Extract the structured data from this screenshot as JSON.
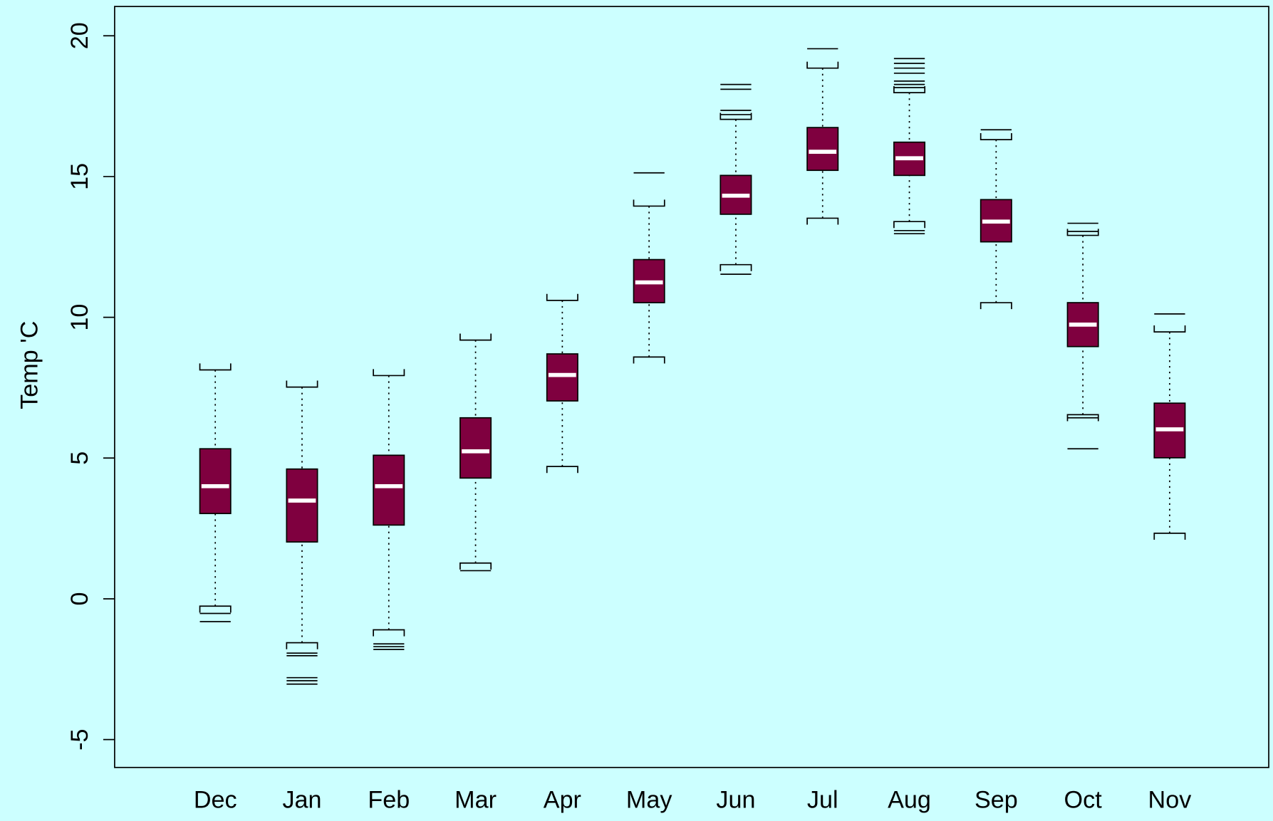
{
  "chart_data": {
    "type": "boxplot",
    "y_label": "Temp 'C",
    "categories": [
      "Dec",
      "Jan",
      "Feb",
      "Mar",
      "Apr",
      "May",
      "Jun",
      "Jul",
      "Aug",
      "Sep",
      "Oct",
      "Nov"
    ],
    "boxes": [
      {
        "whisker_low": -0.26,
        "q1": 3.03,
        "median": 4.0,
        "q3": 5.33,
        "whisker_high": 8.13,
        "outliers": [
          -0.52,
          -0.81
        ]
      },
      {
        "whisker_low": -1.56,
        "q1": 2.02,
        "median": 3.49,
        "q3": 4.61,
        "whisker_high": 7.52,
        "outliers": [
          -1.93,
          -2.02,
          -2.8,
          -2.91,
          -3.03
        ]
      },
      {
        "whisker_low": -1.1,
        "q1": 2.62,
        "median": 4.0,
        "q3": 5.1,
        "whisker_high": 7.93,
        "outliers": [
          -1.6,
          -1.7,
          -1.8
        ]
      },
      {
        "whisker_low": 1.27,
        "q1": 4.29,
        "median": 5.24,
        "q3": 6.43,
        "whisker_high": 9.19,
        "outliers": [
          1.0
        ]
      },
      {
        "whisker_low": 4.7,
        "q1": 7.03,
        "median": 7.95,
        "q3": 8.7,
        "whisker_high": 10.6,
        "outliers": []
      },
      {
        "whisker_low": 8.59,
        "q1": 10.52,
        "median": 11.24,
        "q3": 12.05,
        "whisker_high": 13.95,
        "outliers": [
          15.13
        ]
      },
      {
        "whisker_low": 11.87,
        "q1": 13.66,
        "median": 14.32,
        "q3": 15.04,
        "whisker_high": 17.03,
        "outliers": [
          18.27,
          18.1,
          17.35,
          17.2,
          11.53
        ]
      },
      {
        "whisker_low": 13.52,
        "q1": 15.22,
        "median": 15.88,
        "q3": 16.74,
        "whisker_high": 18.85,
        "outliers": [
          19.54
        ]
      },
      {
        "whisker_low": 13.4,
        "q1": 15.04,
        "median": 15.65,
        "q3": 16.22,
        "whisker_high": 17.98,
        "outliers": [
          19.19,
          19.02,
          18.85,
          18.67,
          18.39,
          18.27,
          18.16,
          13.08,
          12.97
        ]
      },
      {
        "whisker_low": 10.52,
        "q1": 12.68,
        "median": 13.4,
        "q3": 14.18,
        "whisker_high": 16.31,
        "outliers": [
          16.66
        ]
      },
      {
        "whisker_low": 6.54,
        "q1": 8.96,
        "median": 9.74,
        "q3": 10.52,
        "whisker_high": 12.91,
        "outliers": [
          13.34,
          13.05,
          6.43,
          5.33
        ]
      },
      {
        "whisker_low": 2.33,
        "q1": 5.01,
        "median": 6.02,
        "q3": 6.95,
        "whisker_high": 9.48,
        "outliers": [
          10.12
        ]
      }
    ],
    "box_color": "#7f003f",
    "median_color": "#ffffff",
    "background": "#ccffff",
    "ylim": [
      -5.99,
      21.04
    ],
    "yticks": [
      -5,
      0,
      5,
      10,
      15,
      20
    ]
  }
}
